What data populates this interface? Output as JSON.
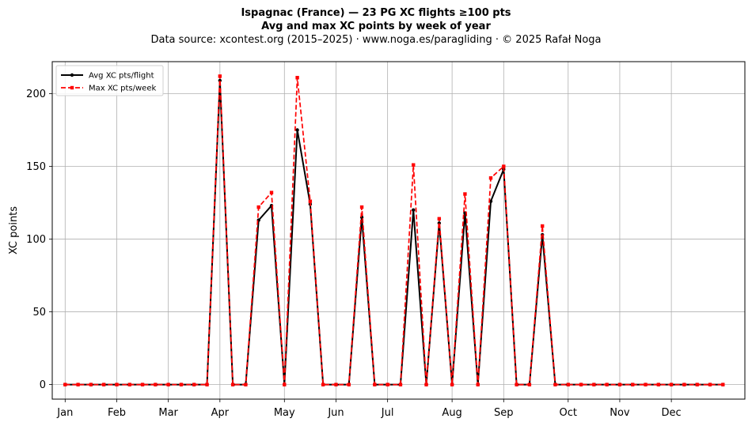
{
  "chart_data": {
    "type": "line",
    "title": "Ispagnac (France)  —  23 PG XC flights ≥100 pts",
    "subtitle": "Avg and max XC points by week of year",
    "source": "Data source: xcontest.org (2015–2025)  ·  www.noga.es/paragliding  ·  © 2025 Rafał Noga",
    "xlabel": "",
    "ylabel": "XC points",
    "xlim": [
      0,
      53.7
    ],
    "ylim": [
      -10,
      222
    ],
    "grid": true,
    "legend_position": "top-left",
    "month_ticks": [
      {
        "label": "Jan",
        "week": 1
      },
      {
        "label": "Feb",
        "week": 5
      },
      {
        "label": "Mar",
        "week": 9
      },
      {
        "label": "Apr",
        "week": 13
      },
      {
        "label": "May",
        "week": 18
      },
      {
        "label": "Jun",
        "week": 22
      },
      {
        "label": "Jul",
        "week": 26
      },
      {
        "label": "Aug",
        "week": 31
      },
      {
        "label": "Sep",
        "week": 35
      },
      {
        "label": "Oct",
        "week": 40
      },
      {
        "label": "Nov",
        "week": 44
      },
      {
        "label": "Dec",
        "week": 48
      }
    ],
    "y_ticks": [
      0,
      50,
      100,
      150,
      200
    ],
    "x": [
      1,
      2,
      3,
      4,
      5,
      6,
      7,
      8,
      9,
      10,
      11,
      12,
      13,
      14,
      15,
      16,
      17,
      18,
      19,
      20,
      21,
      22,
      23,
      24,
      25,
      26,
      27,
      28,
      29,
      30,
      31,
      32,
      33,
      34,
      35,
      36,
      37,
      38,
      39,
      40,
      41,
      42,
      43,
      44,
      45,
      46,
      47,
      48,
      49,
      50,
      51,
      52
    ],
    "series": [
      {
        "name": "Avg XC pts/flight",
        "color": "#000000",
        "style": "solid",
        "marker": "circle",
        "values": [
          0,
          0,
          0,
          0,
          0,
          0,
          0,
          0,
          0,
          0,
          0,
          0,
          209,
          0,
          0,
          113,
          123,
          0,
          175,
          124,
          0,
          0,
          0,
          115,
          0,
          0,
          0,
          120,
          0,
          111,
          0,
          118,
          0,
          126,
          148,
          0,
          0,
          103,
          0,
          0,
          0,
          0,
          0,
          0,
          0,
          0,
          0,
          0,
          0,
          0,
          0,
          0
        ]
      },
      {
        "name": "Max XC pts/week",
        "color": "#ff0000",
        "style": "dashed",
        "marker": "square",
        "values": [
          0,
          0,
          0,
          0,
          0,
          0,
          0,
          0,
          0,
          0,
          0,
          0,
          212,
          0,
          0,
          122,
          132,
          0,
          211,
          126,
          0,
          0,
          0,
          122,
          0,
          0,
          0,
          151,
          0,
          114,
          0,
          131,
          0,
          142,
          150,
          0,
          0,
          109,
          0,
          0,
          0,
          0,
          0,
          0,
          0,
          0,
          0,
          0,
          0,
          0,
          0,
          0
        ]
      }
    ]
  }
}
